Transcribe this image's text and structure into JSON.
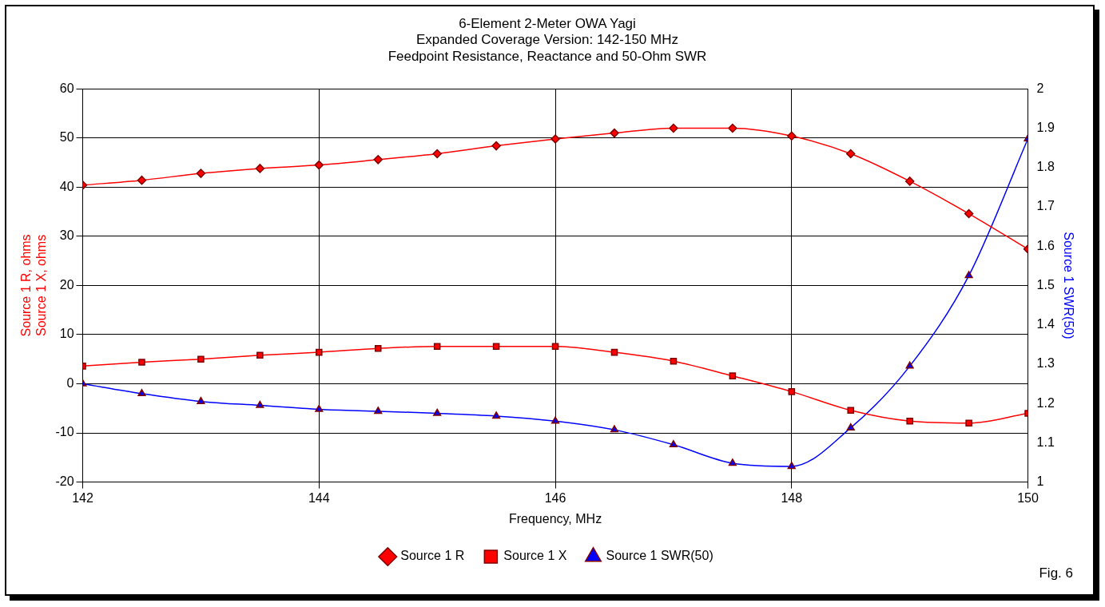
{
  "chart_data": {
    "type": "line",
    "title": [
      "6-Element 2-Meter OWA Yagi",
      "Expanded Coverage Version: 142-150 MHz",
      "Feedpoint Resistance, Reactance and 50-Ohm SWR"
    ],
    "xlabel": "Frequency, MHz",
    "ylabel": [
      "Source 1 R, ohms",
      "Source 1 X, ohms"
    ],
    "y2label": "Source 1 SWR(50)",
    "x": [
      142,
      142.5,
      143,
      143.5,
      144,
      144.5,
      145,
      145.5,
      146,
      146.5,
      147,
      147.5,
      148,
      148.5,
      149,
      149.5,
      150
    ],
    "series": [
      {
        "name": "Source 1 R",
        "color": "#ff0000",
        "marker": "diamond",
        "values": [
          40.4,
          41.4,
          42.8,
          43.8,
          44.5,
          45.6,
          46.8,
          48.4,
          49.8,
          51,
          52,
          52,
          50.4,
          46.8,
          41.2,
          34.6,
          27.4
        ]
      },
      {
        "name": "Source 1 X",
        "color": "#ff0000",
        "marker": "square",
        "values": [
          3.6,
          4.4,
          5,
          5.8,
          6.4,
          7.2,
          7.6,
          7.6,
          7.6,
          6.4,
          4.6,
          1.6,
          -1.6,
          -5.4,
          -7.6,
          -8,
          -6
        ]
      },
      {
        "name": "Source 1 SWR(50)",
        "color": "#0000ff",
        "marker": "triangle",
        "axis": "y2",
        "values": [
          1.25,
          1.225,
          1.205,
          1.195,
          1.185,
          1.18,
          1.175,
          1.168,
          1.155,
          1.133,
          1.095,
          1.048,
          1.04,
          1.138,
          1.295,
          1.525,
          1.873
        ]
      }
    ],
    "xlim": [
      142,
      150
    ],
    "xticks": [
      142,
      144,
      146,
      148,
      150
    ],
    "ylim": [
      -20,
      60
    ],
    "yticks": [
      -20,
      -10,
      0,
      10,
      20,
      30,
      40,
      50,
      60
    ],
    "y2lim": [
      1,
      2
    ],
    "y2ticks": [
      1,
      1.1,
      1.2,
      1.3,
      1.4,
      1.5,
      1.6,
      1.7,
      1.8,
      1.9,
      2
    ],
    "grid": true,
    "legend": "bottom",
    "annotations": [
      "Fig. 6"
    ]
  }
}
